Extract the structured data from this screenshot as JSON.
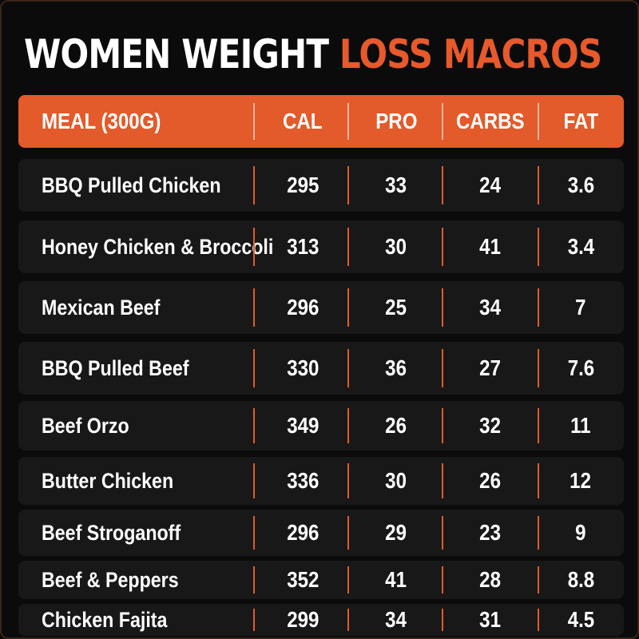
{
  "title": {
    "part1": "WOMEN WEIGHT",
    "part2": "LOSS MACROS"
  },
  "colors": {
    "accent": "#e35a2b",
    "background": "#0b0b0b",
    "row_background": "#181818",
    "text": "#ffffff"
  },
  "table": {
    "headers": {
      "meal": "MEAL (300G)",
      "cal": "CAL",
      "pro": "PRO",
      "carbs": "CARBS",
      "fat": "FAT"
    },
    "rows": [
      {
        "meal": "BBQ Pulled Chicken",
        "cal": "295",
        "pro": "33",
        "carbs": "24",
        "fat": "3.6"
      },
      {
        "meal": "Honey Chicken & Broccoli",
        "cal": "313",
        "pro": "30",
        "carbs": "41",
        "fat": "3.4"
      },
      {
        "meal": "Mexican Beef",
        "cal": "296",
        "pro": "25",
        "carbs": "34",
        "fat": "7"
      },
      {
        "meal": "BBQ Pulled Beef",
        "cal": "330",
        "pro": "36",
        "carbs": "27",
        "fat": "7.6"
      },
      {
        "meal": "Beef Orzo",
        "cal": "349",
        "pro": "26",
        "carbs": "32",
        "fat": "11"
      },
      {
        "meal": "Butter Chicken",
        "cal": "336",
        "pro": "30",
        "carbs": "26",
        "fat": "12"
      },
      {
        "meal": "Beef Stroganoff",
        "cal": "296",
        "pro": "29",
        "carbs": "23",
        "fat": "9"
      },
      {
        "meal": "Beef & Peppers",
        "cal": "352",
        "pro": "41",
        "carbs": "28",
        "fat": "8.8"
      },
      {
        "meal": "Chicken Fajita",
        "cal": "299",
        "pro": "34",
        "carbs": "31",
        "fat": "4.5"
      }
    ]
  }
}
